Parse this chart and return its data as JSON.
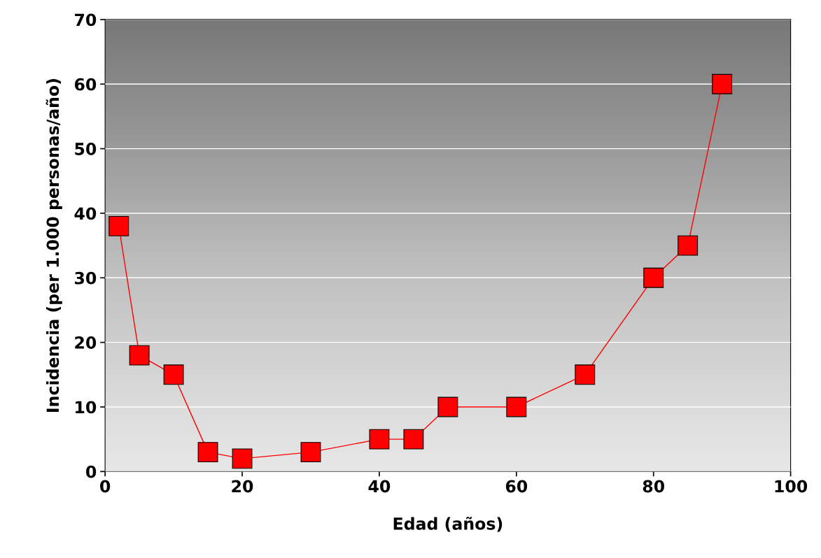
{
  "chart_data": {
    "type": "line",
    "xlabel": "Edad (años)",
    "ylabel": "Incidencia (per 1.000 personas/año)",
    "x": [
      2,
      5,
      10,
      15,
      20,
      30,
      40,
      45,
      50,
      60,
      70,
      80,
      85,
      90
    ],
    "series": [
      {
        "color": "#ff0000",
        "values": [
          38,
          18,
          15,
          3,
          2,
          3,
          5,
          5,
          10,
          10,
          15,
          30,
          35,
          60
        ]
      }
    ],
    "xlim": [
      0,
      100
    ],
    "xticks": [
      0,
      20,
      40,
      60,
      80,
      100
    ],
    "ylim": [
      0,
      70
    ],
    "yticks": [
      0,
      10,
      20,
      30,
      40,
      50,
      60,
      70
    ],
    "grid": "y",
    "marker": "square",
    "line_style": "solid"
  }
}
